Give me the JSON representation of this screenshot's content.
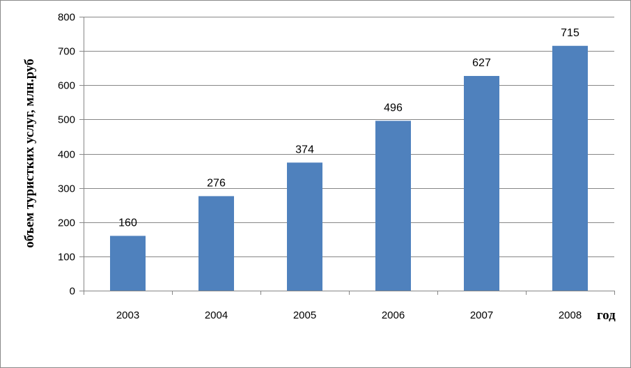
{
  "chart_data": {
    "type": "bar",
    "categories": [
      "2003",
      "2004",
      "2005",
      "2006",
      "2007",
      "2008"
    ],
    "values": [
      160,
      276,
      374,
      496,
      627,
      715
    ],
    "data_labels": [
      "160",
      "276",
      "374",
      "496",
      "627",
      "715"
    ],
    "xlabel": "год",
    "ylabel": "объем туристких услуг, млн.руб",
    "ylim": [
      0,
      800
    ],
    "ytick_step": 100,
    "yticks": [
      "0",
      "100",
      "200",
      "300",
      "400",
      "500",
      "600",
      "700",
      "800"
    ],
    "grid": true,
    "legend": false,
    "bar_color": "#4f81bd",
    "grid_color": "#868686"
  }
}
